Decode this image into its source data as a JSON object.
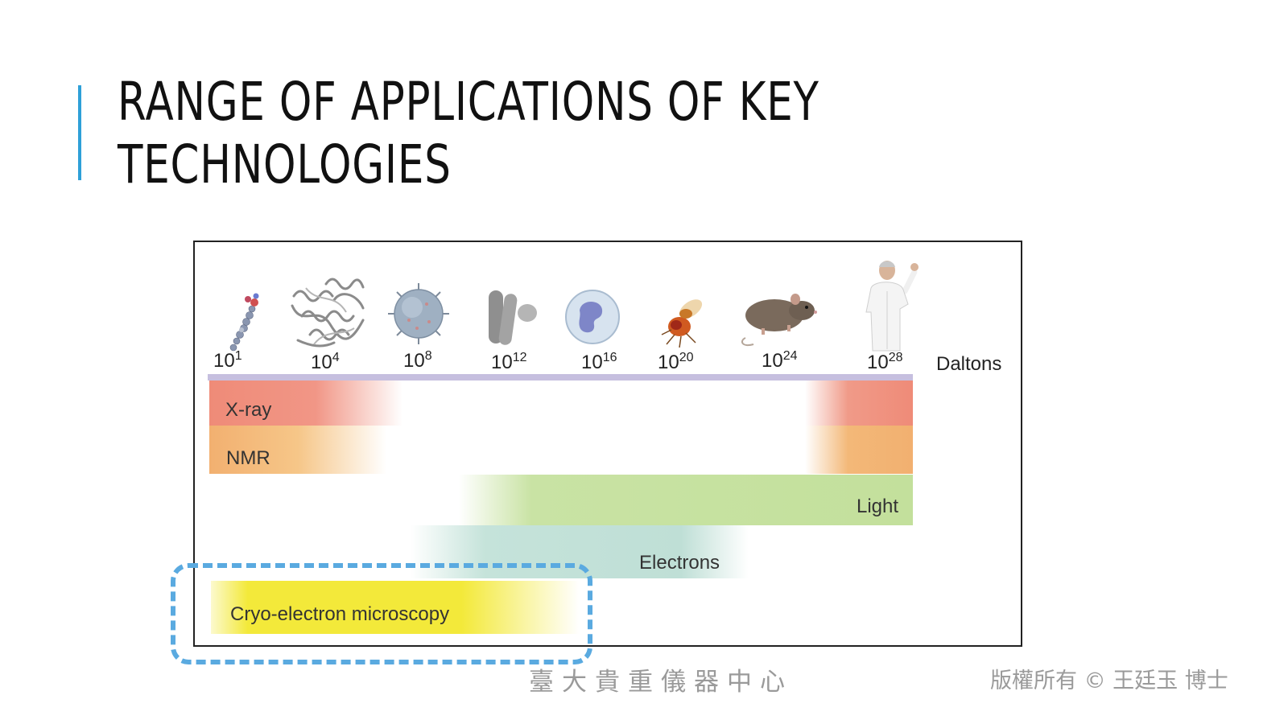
{
  "slide": {
    "title_line1": "RANGE OF APPLICATIONS OF KEY",
    "title_line2": "TECHNOLOGIES"
  },
  "figure": {
    "scale_unit": "Daltons",
    "magnitudes": [
      {
        "base": "10",
        "exp": "1",
        "icon": "small-molecule-icon"
      },
      {
        "base": "10",
        "exp": "4",
        "icon": "protein-structure-icon"
      },
      {
        "base": "10",
        "exp": "8",
        "icon": "virus-icon"
      },
      {
        "base": "10",
        "exp": "12",
        "icon": "bacteria-icon"
      },
      {
        "base": "10",
        "exp": "16",
        "icon": "cell-icon"
      },
      {
        "base": "10",
        "exp": "20",
        "icon": "fruit-fly-icon"
      },
      {
        "base": "10",
        "exp": "24",
        "icon": "mouse-icon"
      },
      {
        "base": "10",
        "exp": "28",
        "icon": "human-icon"
      }
    ],
    "techniques": [
      {
        "label": "X-ray",
        "color": "#ef8b78"
      },
      {
        "label": "NMR",
        "color": "#f2b070"
      },
      {
        "label": "Light",
        "color": "#c3e09c"
      },
      {
        "label": "Electrons",
        "color": "#bfdfd6"
      },
      {
        "label": "Cryo-electron microscopy",
        "color": "#f3e93a"
      }
    ],
    "highlight_color": "#5aaae0"
  },
  "footer": {
    "institution": "臺大貴重儀器中心",
    "copyright": "版權所有 © 王廷玉 博士"
  }
}
